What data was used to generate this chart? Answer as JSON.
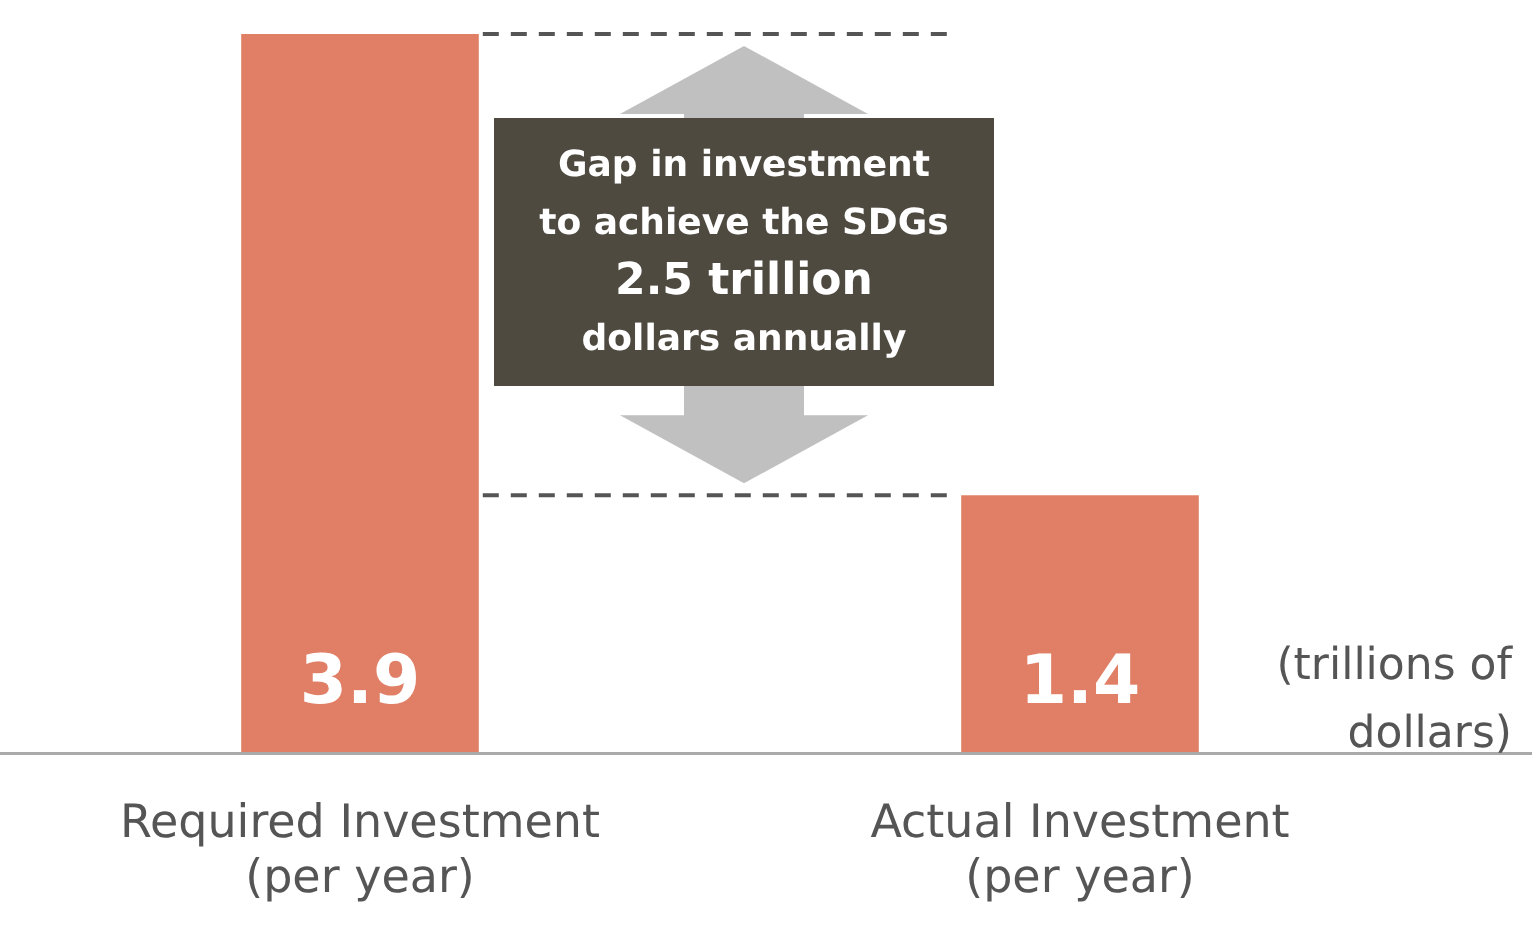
{
  "chart_data": {
    "type": "bar",
    "categories": [
      "Required Investment\n(per year)",
      "Actual Investment\n(per year)"
    ],
    "values": [
      3.9,
      1.4
    ],
    "color": "#e07f65",
    "data_labels": true,
    "ref_lines": [
      {
        "axis": "y",
        "value": 3.9,
        "line_style": "dashed",
        "color": "#555555"
      },
      {
        "axis": "y",
        "value": 1.4,
        "line_style": "dashed",
        "color": "#555555"
      }
    ],
    "annotations": [
      "Gap in investment\nto achieve the SDGs\n2.5 trillion\ndollars annually",
      "(trillions of\ndollars)"
    ]
  }
}
